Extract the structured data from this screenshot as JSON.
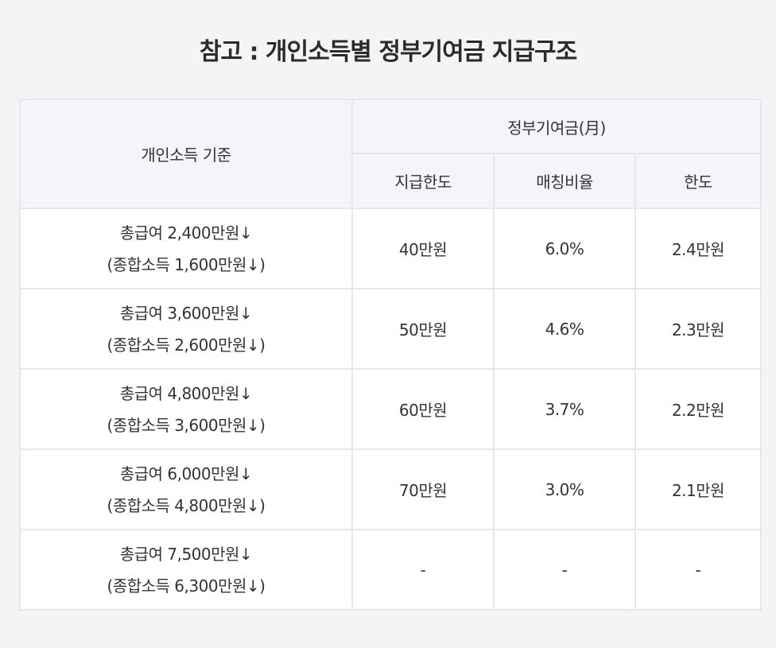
{
  "title": "참고 : 개인소득별 정부기여금 지급구조",
  "table": {
    "header": {
      "criteria": "개인소득 기준",
      "group": "정부기여금(月)",
      "limit": "지급한도",
      "ratio": "매칭비율",
      "cap": "한도"
    },
    "rows": [
      {
        "salary": "총급여 2,400만원↓",
        "income": "(종합소득 1,600만원↓)",
        "limit": "40만원",
        "ratio": "6.0%",
        "cap": "2.4만원"
      },
      {
        "salary": "총급여 3,600만원↓",
        "income": "(종합소득 2,600만원↓)",
        "limit": "50만원",
        "ratio": "4.6%",
        "cap": "2.3만원"
      },
      {
        "salary": "총급여 4,800만원↓",
        "income": "(종합소득 3,600만원↓)",
        "limit": "60만원",
        "ratio": "3.7%",
        "cap": "2.2만원"
      },
      {
        "salary": "총급여 6,000만원↓",
        "income": "(종합소득 4,800만원↓)",
        "limit": "70만원",
        "ratio": "3.0%",
        "cap": "2.1만원"
      },
      {
        "salary": "총급여 7,500만원↓",
        "income": "(종합소득 6,300만원↓)",
        "limit": "-",
        "ratio": "-",
        "cap": "-"
      }
    ]
  }
}
